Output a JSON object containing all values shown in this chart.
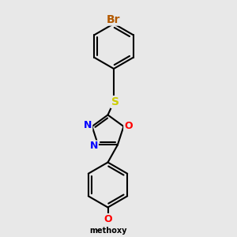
{
  "background_color": "#e8e8e8",
  "bond_color": "#000000",
  "bond_width": 1.5,
  "atom_colors": {
    "Br": "#b35900",
    "S": "#cccc00",
    "O": "#ff0000",
    "N": "#0000ff",
    "C": "#000000"
  },
  "font_size": 9,
  "figsize": [
    3.0,
    3.0
  ],
  "dpi": 100,
  "xlim": [
    0,
    10
  ],
  "ylim": [
    0,
    10
  ]
}
